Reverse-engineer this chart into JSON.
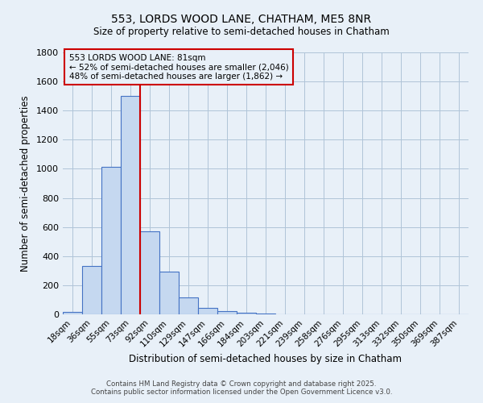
{
  "title1": "553, LORDS WOOD LANE, CHATHAM, ME5 8NR",
  "title2": "Size of property relative to semi-detached houses in Chatham",
  "xlabel": "Distribution of semi-detached houses by size in Chatham",
  "ylabel": "Number of semi-detached properties",
  "bin_labels": [
    "18sqm",
    "36sqm",
    "55sqm",
    "73sqm",
    "92sqm",
    "110sqm",
    "129sqm",
    "147sqm",
    "166sqm",
    "184sqm",
    "203sqm",
    "221sqm",
    "239sqm",
    "258sqm",
    "276sqm",
    "295sqm",
    "313sqm",
    "332sqm",
    "350sqm",
    "369sqm",
    "387sqm"
  ],
  "bin_values": [
    15,
    330,
    1015,
    1500,
    570,
    295,
    115,
    47,
    20,
    12,
    8,
    0,
    0,
    0,
    0,
    0,
    0,
    0,
    0,
    0,
    0
  ],
  "bar_color": "#c5d8f0",
  "bar_edge_color": "#4472c4",
  "property_bin_index": 3,
  "vline_color": "#cc0000",
  "annotation_title": "553 LORDS WOOD LANE: 81sqm",
  "annotation_line1": "← 52% of semi-detached houses are smaller (2,046)",
  "annotation_line2": "48% of semi-detached houses are larger (1,862) →",
  "annotation_box_color": "#cc0000",
  "ylim": [
    0,
    1800
  ],
  "yticks": [
    0,
    200,
    400,
    600,
    800,
    1000,
    1200,
    1400,
    1600,
    1800
  ],
  "grid_color": "#b0c4d8",
  "background_color": "#e8f0f8",
  "footer1": "Contains HM Land Registry data © Crown copyright and database right 2025.",
  "footer2": "Contains public sector information licensed under the Open Government Licence v3.0."
}
